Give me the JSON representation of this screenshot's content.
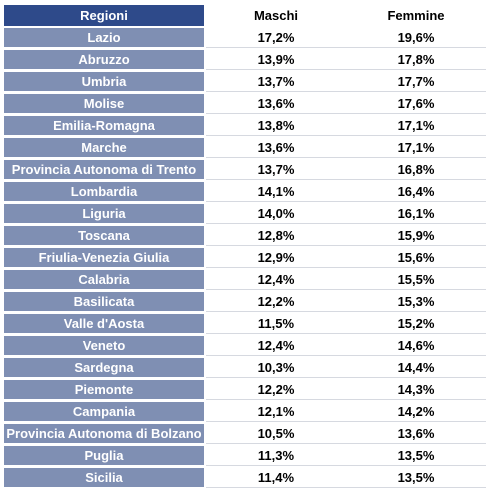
{
  "header": {
    "region": "Regioni",
    "male": "Maschi",
    "female": "Femmine"
  },
  "rows": [
    {
      "region": "Lazio",
      "male": "17,2%",
      "female": "19,6%"
    },
    {
      "region": "Abruzzo",
      "male": "13,9%",
      "female": "17,8%"
    },
    {
      "region": "Umbria",
      "male": "13,7%",
      "female": "17,7%"
    },
    {
      "region": "Molise",
      "male": "13,6%",
      "female": "17,6%"
    },
    {
      "region": "Emilia-Romagna",
      "male": "13,8%",
      "female": "17,1%"
    },
    {
      "region": "Marche",
      "male": "13,6%",
      "female": "17,1%"
    },
    {
      "region": "Provincia Autonoma di Trento",
      "male": "13,7%",
      "female": "16,8%"
    },
    {
      "region": "Lombardia",
      "male": "14,1%",
      "female": "16,4%"
    },
    {
      "region": "Liguria",
      "male": "14,0%",
      "female": "16,1%"
    },
    {
      "region": "Toscana",
      "male": "12,8%",
      "female": "15,9%"
    },
    {
      "region": "Friulia-Venezia Giulia",
      "male": "12,9%",
      "female": "15,6%"
    },
    {
      "region": "Calabria",
      "male": "12,4%",
      "female": "15,5%"
    },
    {
      "region": "Basilicata",
      "male": "12,2%",
      "female": "15,3%"
    },
    {
      "region": "Valle d'Aosta",
      "male": "11,5%",
      "female": "15,2%"
    },
    {
      "region": "Veneto",
      "male": "12,4%",
      "female": "14,6%"
    },
    {
      "region": "Sardegna",
      "male": "10,3%",
      "female": "14,4%"
    },
    {
      "region": "Piemonte",
      "male": "12,2%",
      "female": "14,3%"
    },
    {
      "region": "Campania",
      "male": "12,1%",
      "female": "14,2%"
    },
    {
      "region": "Provincia Autonoma di Bolzano",
      "male": "10,5%",
      "female": "13,6%"
    },
    {
      "region": "Puglia",
      "male": "11,3%",
      "female": "13,5%"
    },
    {
      "region": "Sicilia",
      "male": "11,4%",
      "female": "13,5%"
    }
  ],
  "colors": {
    "header_bg": "#2e4a8a",
    "region_bg": "#7f8fb3",
    "region_text": "#ffffff"
  }
}
